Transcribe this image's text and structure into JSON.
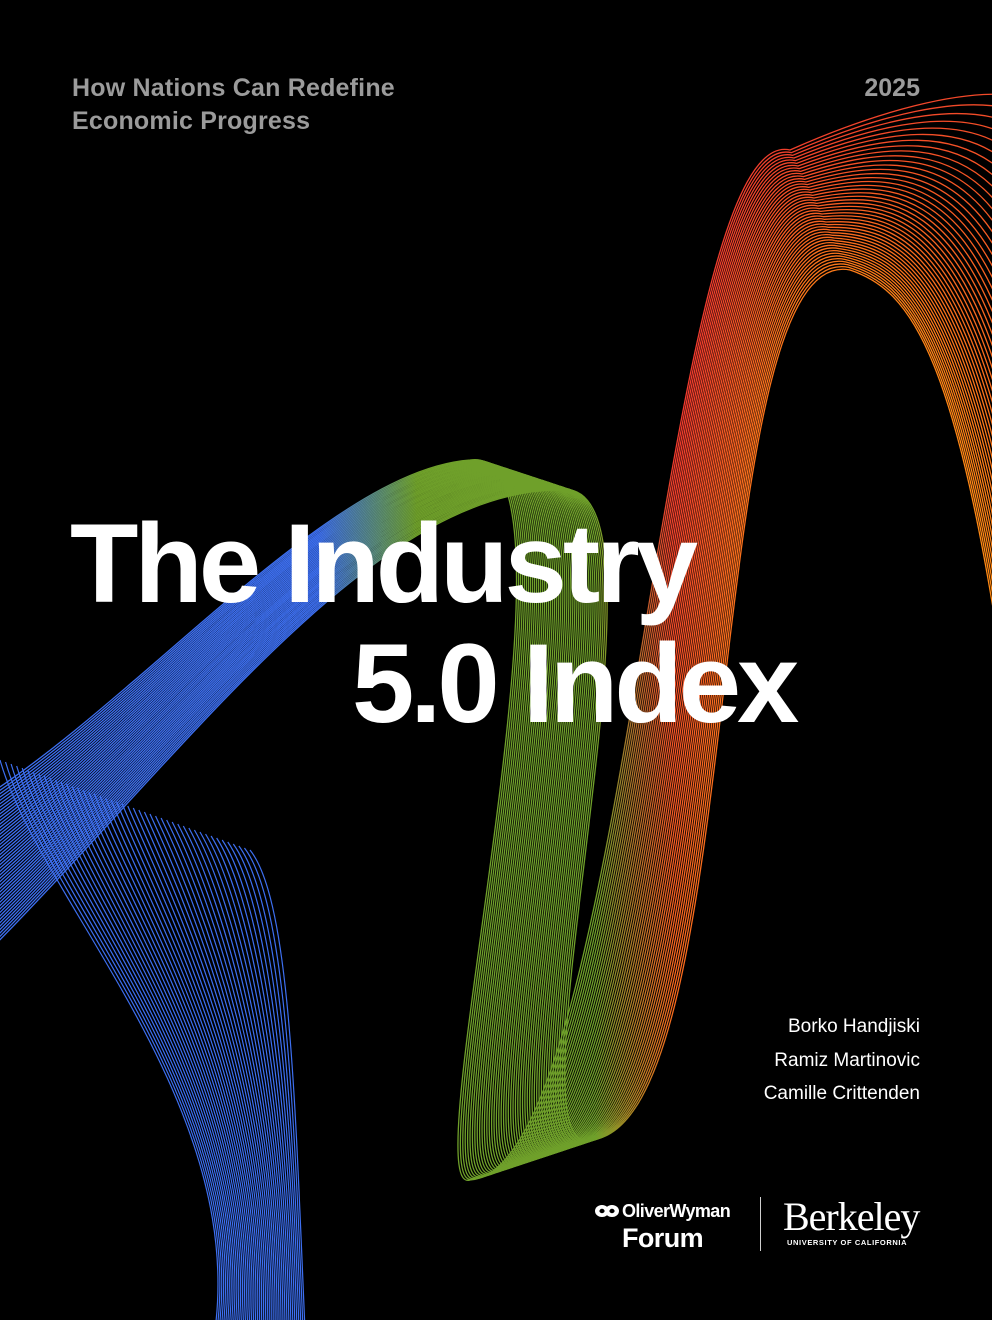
{
  "cover": {
    "subtitle_line1": "How Nations Can Redefine",
    "subtitle_line2": "Economic Progress",
    "year": "2025",
    "title_line1": "The Industry",
    "title_line2": "5.0 Index"
  },
  "authors": [
    "Borko Handjiski",
    "Ramiz Martinovic",
    "Camille Crittenden"
  ],
  "logos": {
    "oliver_wyman_name": "OliverWyman",
    "oliver_wyman_forum": "Forum",
    "berkeley_name": "Berkeley",
    "berkeley_sub": "UNIVERSITY OF CALIFORNIA"
  },
  "colors": {
    "background": "#000000",
    "ribbon_blue": "#3d6ff0",
    "ribbon_green": "#6fa02a",
    "ribbon_red": "#f03a2e",
    "ribbon_orange": "#ff8a14"
  }
}
